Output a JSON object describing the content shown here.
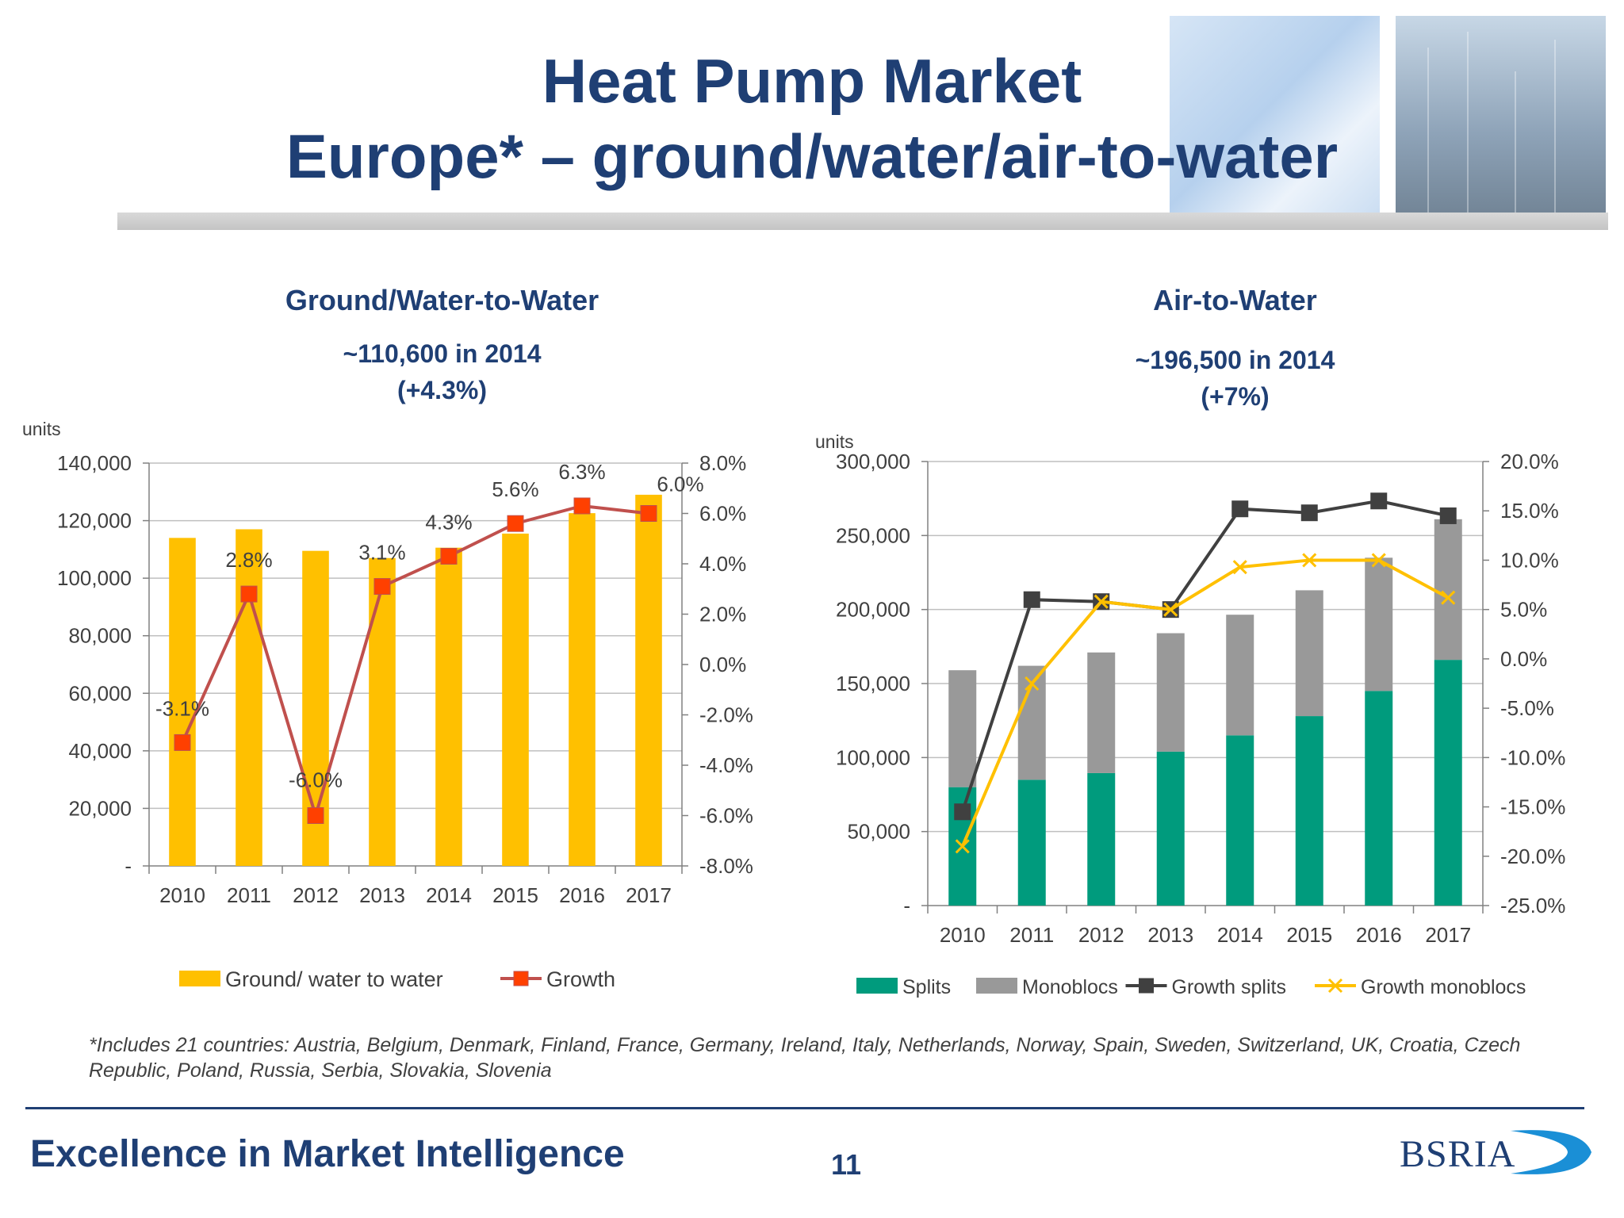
{
  "header": {
    "title_line1": "Heat Pump Market",
    "title_line2": "Europe* – ground/water/air-to-water"
  },
  "left_panel": {
    "heading": "Ground/Water-to-Water",
    "summary_line1": "~110,600 in 2014",
    "summary_line2": "(+4.3%)"
  },
  "right_panel": {
    "heading": "Air-to-Water",
    "summary_line1": "~196,500 in 2014",
    "summary_line2": "(+7%)"
  },
  "chart_data": [
    {
      "type": "bar",
      "ylabel": "units",
      "categories": [
        "2010",
        "2011",
        "2012",
        "2013",
        "2014",
        "2015",
        "2016",
        "2017"
      ],
      "ylim": [
        0,
        140000
      ],
      "y_ticks": [
        "-",
        "20,000",
        "40,000",
        "60,000",
        "80,000",
        "100,000",
        "120,000",
        "140,000"
      ],
      "y2lim": [
        -8.0,
        8.0
      ],
      "y2_ticks": [
        "-8.0%",
        "-6.0%",
        "-4.0%",
        "-2.0%",
        "0.0%",
        "2.0%",
        "4.0%",
        "6.0%",
        "8.0%"
      ],
      "grid": true,
      "legend": "bottom",
      "series": [
        {
          "name": "Ground/ water to water",
          "type": "bar",
          "axis": "left",
          "color": "#ffc000",
          "values": [
            114000,
            117000,
            109500,
            107000,
            110600,
            115500,
            122600,
            129000
          ]
        },
        {
          "name": "Growth",
          "type": "line",
          "axis": "right",
          "color": "#c0504d",
          "marker_color": "#ff4000",
          "values": [
            -3.1,
            2.8,
            -6.0,
            3.1,
            4.3,
            5.6,
            6.3,
            6.0
          ],
          "labels": [
            "-3.1%",
            "2.8%",
            "-6.0%",
            "3.1%",
            "4.3%",
            "5.6%",
            "6.3%",
            "6.0%"
          ]
        }
      ]
    },
    {
      "type": "bar",
      "stacked": true,
      "ylabel": "units",
      "categories": [
        "2010",
        "2011",
        "2012",
        "2013",
        "2014",
        "2015",
        "2016",
        "2017"
      ],
      "ylim": [
        0,
        300000
      ],
      "y_ticks": [
        "-",
        "50,000",
        "100,000",
        "150,000",
        "200,000",
        "250,000",
        "300,000"
      ],
      "y2lim": [
        -25.0,
        20.0
      ],
      "y2_ticks": [
        "-25.0%",
        "-20.0%",
        "-15.0%",
        "-10.0%",
        "-5.0%",
        "0.0%",
        "5.0%",
        "10.0%",
        "15.0%",
        "20.0%"
      ],
      "grid": true,
      "legend": "bottom",
      "series": [
        {
          "name": "Splits",
          "type": "bar",
          "axis": "left",
          "color": "#009b7d",
          "values": [
            80000,
            85000,
            89500,
            104000,
            115000,
            128000,
            145000,
            166000
          ]
        },
        {
          "name": "Monoblocs",
          "type": "bar",
          "axis": "left",
          "color": "#999999",
          "values": [
            79000,
            77000,
            81500,
            80000,
            81500,
            85000,
            90000,
            95000
          ]
        },
        {
          "name": "Growth splits",
          "type": "line",
          "axis": "right",
          "color": "#404040",
          "marker": "square",
          "values": [
            -15.5,
            6.0,
            5.8,
            5.0,
            15.2,
            14.8,
            16.0,
            14.5
          ]
        },
        {
          "name": "Growth monoblocs",
          "type": "line",
          "axis": "right",
          "color": "#ffc000",
          "marker": "x",
          "values": [
            -19.0,
            -2.5,
            5.8,
            5.0,
            9.3,
            10.0,
            10.0,
            6.2
          ]
        }
      ]
    }
  ],
  "footnote": "*Includes 21 countries: Austria, Belgium, Denmark, Finland, France, Germany, Ireland, Italy, Netherlands, Norway, Spain, Sweden, Switzerland, UK, Croatia, Czech Republic, Poland, Russia, Serbia, Slovakia, Slovenia",
  "footer": {
    "tagline": "Excellence in Market Intelligence",
    "page_number": "11",
    "logo_text": "BSRIA"
  }
}
